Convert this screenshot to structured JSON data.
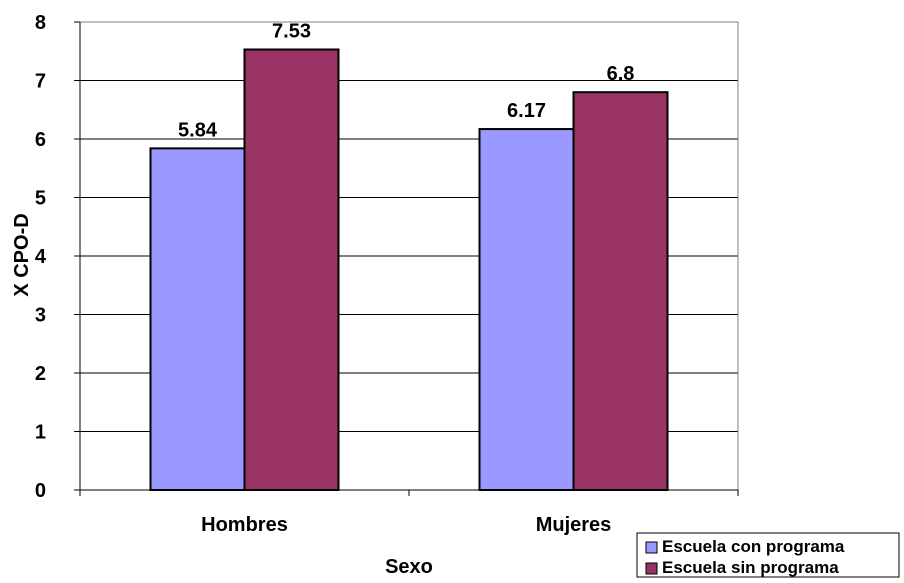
{
  "chart_data": {
    "type": "bar",
    "title": "",
    "xlabel": "Sexo",
    "ylabel": "X CPO-D",
    "categories": [
      "Hombres",
      "Mujeres"
    ],
    "ylim": [
      0,
      8
    ],
    "yticks": [
      0,
      1,
      2,
      3,
      4,
      5,
      6,
      7,
      8
    ],
    "grid": true,
    "legend_position": "bottom-right",
    "series": [
      {
        "name": "Escuela con programa",
        "values": [
          5.84,
          6.17
        ],
        "labels": [
          "5.84",
          "6.17"
        ],
        "color": "#9999ff"
      },
      {
        "name": "Escuela sin programa",
        "values": [
          7.53,
          6.8
        ],
        "labels": [
          "7.53",
          "6.8"
        ],
        "color": "#993366"
      }
    ]
  }
}
